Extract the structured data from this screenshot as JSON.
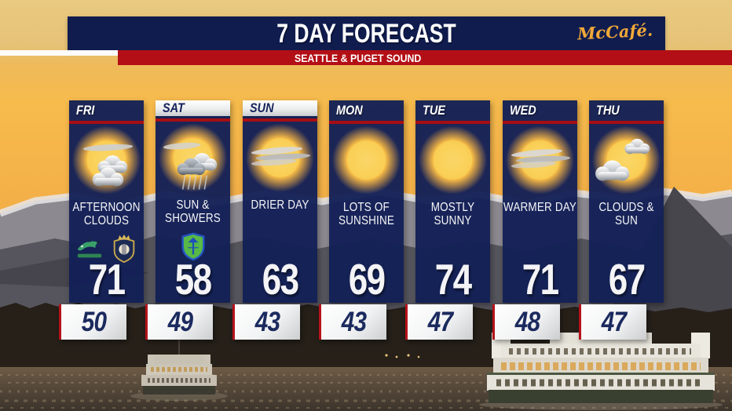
{
  "header": {
    "title": "7 DAY FORECAST",
    "subtitle": "SEATTLE & PUGET SOUND",
    "sponsor": "McCafé."
  },
  "colors": {
    "banner_navy": "#101c4e",
    "column_navy": "#142056",
    "banner_red": "#b30f16",
    "column_red_line": "#a60e13",
    "sponsor_gold": "#f0a838",
    "low_number_navy": "#1b2a5e"
  },
  "forecast": {
    "days": [
      {
        "label": "FRI",
        "condition": "AFTERNOON CLOUDS",
        "high": "71",
        "low": "50",
        "icon": "sun-with-clouds",
        "weekend": false,
        "logos": [
          "seawolves-logo",
          "crown-crest-logo"
        ]
      },
      {
        "label": "SAT",
        "condition": "SUN & SHOWERS",
        "high": "58",
        "low": "49",
        "icon": "sun-with-showers",
        "weekend": true,
        "logos": [
          "sounders-shield-logo"
        ]
      },
      {
        "label": "SUN",
        "condition": "DRIER DAY",
        "high": "63",
        "low": "43",
        "icon": "sun-with-wispy-clouds",
        "weekend": true,
        "logos": []
      },
      {
        "label": "MON",
        "condition": "LOTS OF SUNSHINE",
        "high": "69",
        "low": "43",
        "icon": "sun",
        "weekend": false,
        "logos": []
      },
      {
        "label": "TUE",
        "condition": "MOSTLY SUNNY",
        "high": "74",
        "low": "47",
        "icon": "sun",
        "weekend": false,
        "logos": []
      },
      {
        "label": "WED",
        "condition": "WARMER DAY",
        "high": "71",
        "low": "48",
        "icon": "sun-with-wispy-clouds",
        "weekend": false,
        "logos": []
      },
      {
        "label": "THU",
        "condition": "CLOUDS & SUN",
        "high": "67",
        "low": "47",
        "icon": "sun-with-big-clouds",
        "weekend": false,
        "logos": []
      }
    ]
  }
}
